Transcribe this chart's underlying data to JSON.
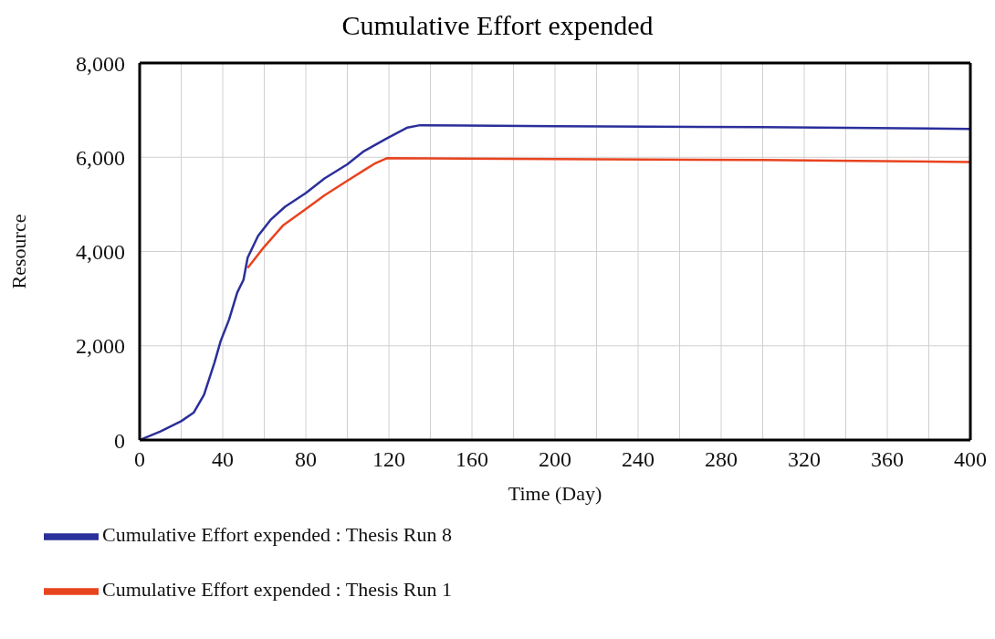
{
  "chart_data": {
    "type": "line",
    "title": "Cumulative Effort expended",
    "xlabel": "Time (Day)",
    "ylabel": "Resource",
    "xlim": [
      0,
      400
    ],
    "xticks": [
      0,
      {
        "value": 20,
        "label": null
      },
      40,
      {
        "value": 60,
        "label": null
      },
      80,
      {
        "value": 100,
        "label": null
      },
      120,
      {
        "value": 140,
        "label": null
      },
      160,
      {
        "value": 180,
        "label": null
      },
      200,
      {
        "value": 220,
        "label": null
      },
      240,
      {
        "value": 260,
        "label": null
      },
      280,
      {
        "value": 300,
        "label": null
      },
      320,
      {
        "value": 340,
        "label": null
      },
      360,
      {
        "value": 380,
        "label": null
      },
      400
    ],
    "ylim": [
      0,
      8000
    ],
    "yticks": [
      {
        "value": 0,
        "label": "0"
      },
      {
        "value": 2000,
        "label": "2,000"
      },
      {
        "value": 4000,
        "label": "4,000"
      },
      {
        "value": 6000,
        "label": "6,000"
      },
      {
        "value": 8000,
        "label": "8,000"
      }
    ],
    "grid": true,
    "legend": "bottom",
    "marker": "none",
    "line_style": "solid",
    "series": [
      {
        "name": "Cumulative Effort expended : Thesis Run 8",
        "color": "#2b2f9a",
        "x": [
          0,
          10,
          20,
          26,
          31,
          36,
          39,
          43,
          47,
          50,
          52,
          57,
          63,
          70,
          80,
          89,
          100,
          108,
          119,
          129,
          135,
          200,
          300,
          400
        ],
        "values": [
          0,
          180,
          400,
          580,
          960,
          1640,
          2100,
          2550,
          3130,
          3400,
          3870,
          4330,
          4670,
          4950,
          5240,
          5550,
          5850,
          6130,
          6400,
          6630,
          6680,
          6660,
          6640,
          6600
        ]
      },
      {
        "name": "Cumulative Effort expended : Thesis Run 1",
        "color": "#e8431f",
        "x": [
          52,
          60,
          69,
          80,
          89,
          100,
          109,
          113,
          119,
          200,
          300,
          400
        ],
        "values": [
          3650,
          4100,
          4550,
          4900,
          5190,
          5500,
          5750,
          5860,
          5980,
          5960,
          5940,
          5900
        ]
      }
    ]
  }
}
